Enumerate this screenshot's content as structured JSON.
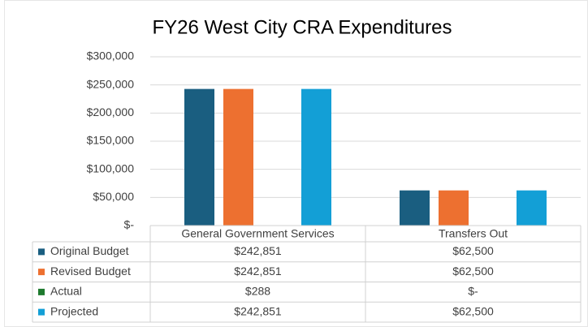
{
  "chart_data": {
    "type": "bar",
    "title": "FY26 West City CRA Expenditures",
    "categories": [
      "General Government Services",
      "Transfers Out"
    ],
    "series": [
      {
        "name": "Original Budget",
        "color": "#1a5e80",
        "values": [
          242851,
          62500
        ],
        "value_labels": [
          "$242,851",
          "$62,500"
        ]
      },
      {
        "name": "Revised Budget",
        "color": "#ed7030",
        "values": [
          242851,
          62500
        ],
        "value_labels": [
          "$242,851",
          "$62,500"
        ]
      },
      {
        "name": "Actual",
        "color": "#1e7a2e",
        "values": [
          288,
          0
        ],
        "value_labels": [
          "$288",
          "$-"
        ]
      },
      {
        "name": "Projected",
        "color": "#139fd6",
        "values": [
          242851,
          62500
        ],
        "value_labels": [
          "$242,851",
          "$62,500"
        ]
      }
    ],
    "ylim": [
      0,
      300000
    ],
    "yticks": [
      {
        "value": 0,
        "label": "$-"
      },
      {
        "value": 50000,
        "label": "$50,000"
      },
      {
        "value": 100000,
        "label": "$100,000"
      },
      {
        "value": 150000,
        "label": "$150,000"
      },
      {
        "value": 200000,
        "label": "$200,000"
      },
      {
        "value": 250000,
        "label": "$250,000"
      },
      {
        "value": 300000,
        "label": "$300,000"
      }
    ],
    "grid": true,
    "legend": "table"
  }
}
